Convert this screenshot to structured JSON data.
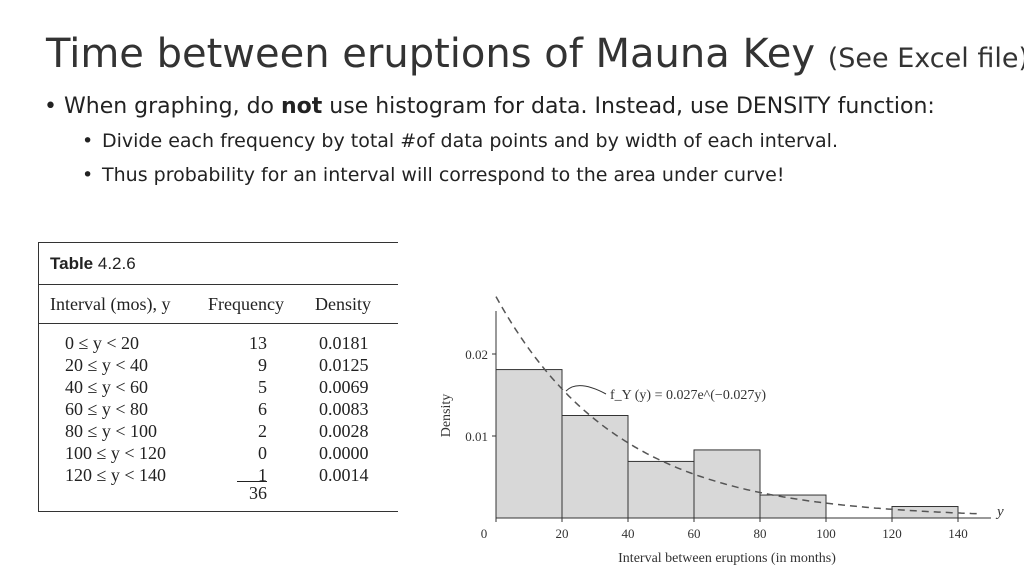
{
  "slide": {
    "title": "Time between eruptions of Mauna Key",
    "title_note": "(See Excel file)",
    "bullet1_a": "When graphing, do ",
    "bullet1_bold": "not",
    "bullet1_b": " use histogram for data. Instead, use DENSITY function:",
    "bullet2": "Divide each frequency by total #of data points and by width of each interval.",
    "bullet3": "Thus probability for an interval will correspond to the area under curve!"
  },
  "table": {
    "caption_prefix": "Table",
    "caption_number": "4.2.6",
    "headers": [
      "Interval (mos), y",
      "Frequency",
      "Density"
    ],
    "rows": [
      {
        "interval": "0 ≤ y < 20",
        "frequency": "13",
        "density": "0.0181"
      },
      {
        "interval": "20 ≤ y < 40",
        "frequency": "9",
        "density": "0.0125"
      },
      {
        "interval": "40 ≤ y < 60",
        "frequency": "5",
        "density": "0.0069"
      },
      {
        "interval": "60 ≤ y < 80",
        "frequency": "6",
        "density": "0.0083"
      },
      {
        "interval": "80 ≤ y < 100",
        "frequency": "2",
        "density": "0.0028"
      },
      {
        "interval": "100 ≤ y < 120",
        "frequency": "0",
        "density": "0.0000"
      },
      {
        "interval": "120 ≤ y < 140",
        "frequency": "1",
        "density": "0.0014"
      }
    ],
    "total": "36"
  },
  "chart_data": {
    "type": "bar",
    "bins": [
      {
        "x0": 0,
        "x1": 20,
        "density": 0.0181
      },
      {
        "x0": 20,
        "x1": 40,
        "density": 0.0125
      },
      {
        "x0": 40,
        "x1": 60,
        "density": 0.0069
      },
      {
        "x0": 60,
        "x1": 80,
        "density": 0.0083
      },
      {
        "x0": 80,
        "x1": 100,
        "density": 0.0028
      },
      {
        "x0": 100,
        "x1": 120,
        "density": 0.0
      },
      {
        "x0": 120,
        "x1": 140,
        "density": 0.0014
      }
    ],
    "curve": {
      "label": "f_Y (y) = 0.027e^(−0.027y)",
      "coef": 0.027,
      "rate": 0.027,
      "style": "dashed"
    },
    "xticks": [
      "0",
      "20",
      "40",
      "60",
      "80",
      "100",
      "120",
      "140"
    ],
    "yticks": [
      "0.01",
      "0.02"
    ],
    "xlabel": "Interval between eruptions (in months)",
    "ylabel": "Density",
    "x_axis_symbol": "y",
    "xlim": [
      0,
      150
    ],
    "ylim": [
      0,
      0.025
    ],
    "bar_color": "#d8d8d8"
  }
}
